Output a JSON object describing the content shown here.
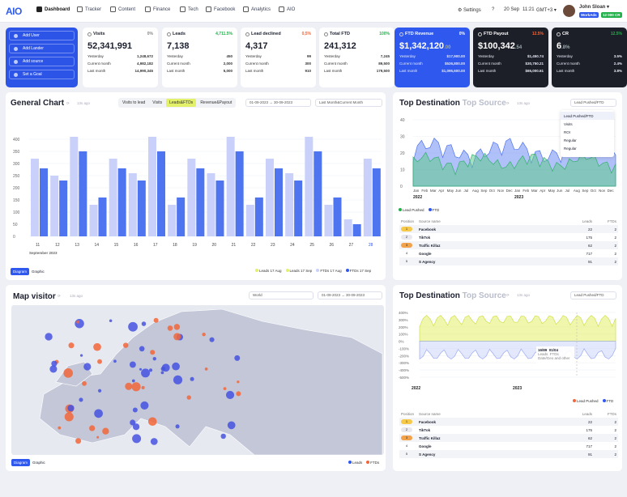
{
  "brand": {
    "logo": "AIO"
  },
  "nav": [
    {
      "label": "Dashboard",
      "active": true
    },
    {
      "label": "Tracker"
    },
    {
      "label": "Content"
    },
    {
      "label": "Finance"
    },
    {
      "label": "Tech"
    },
    {
      "label": "Facebook"
    },
    {
      "label": "Analytics"
    },
    {
      "label": "AIO"
    }
  ],
  "topright": {
    "settings": "Settings",
    "help": "?",
    "date": "20 Sep",
    "time": "11:21",
    "tz": "GMT+3",
    "user": "John Sloan",
    "badge1": "WorkAds",
    "badge2": "12 000 CR"
  },
  "quick": [
    "Add User",
    "Add Lander",
    "Add source",
    "Set a Goal"
  ],
  "stats": [
    {
      "title": "Visits",
      "pct": "0%",
      "big": "52,341,991",
      "small": "",
      "rows": [
        [
          "Yesterday",
          "1,248,672"
        ],
        [
          "Current month",
          "4,982,182"
        ],
        [
          "Last month",
          "14,990,345"
        ]
      ]
    },
    {
      "title": "Leads",
      "pct": "4,711.5%",
      "big": "7,138",
      "small": "",
      "rows": [
        [
          "Yesterday",
          "450"
        ],
        [
          "Current month",
          "2,000"
        ],
        [
          "Last month",
          "5,000"
        ]
      ]
    },
    {
      "title": "Lead declined",
      "pct": "0,5%",
      "big": "4,317",
      "small": "",
      "rows": [
        [
          "Yesterday",
          "99"
        ],
        [
          "Current month",
          "300"
        ],
        [
          "Last month",
          "910"
        ]
      ]
    },
    {
      "title": "Total FTD",
      "pct": "100%",
      "big": "241,312",
      "small": "",
      "rows": [
        [
          "Yesterday",
          "7,245"
        ],
        [
          "Current month",
          "89,500"
        ],
        [
          "Last month",
          "179,500"
        ]
      ]
    },
    {
      "title": "FTD Revenue",
      "pct": "0%",
      "big": "$1,342,120",
      "small": ".00",
      "rows": [
        [
          "Yesterday",
          "$17,900.00"
        ],
        [
          "Current month",
          "$526,800.00"
        ],
        [
          "Last month",
          "$1,095,600.00"
        ]
      ]
    },
    {
      "title": "FTD Payout",
      "pct": "12.5%",
      "big": "$100,342",
      "small": ".54",
      "rows": [
        [
          "Yesterday",
          "$1,450.74"
        ],
        [
          "Current month",
          "$30,750.21"
        ],
        [
          "Last month",
          "$65,000.61"
        ]
      ]
    },
    {
      "title": "CR",
      "pct": "12.5%",
      "big": "6",
      "small": ".8%",
      "rows": [
        [
          "Yesterday",
          "3.5%"
        ],
        [
          "Current month",
          "2.4%"
        ],
        [
          "Last month",
          "3.8%"
        ]
      ]
    }
  ],
  "general": {
    "title": "General Chart",
    "ago": "13s ago",
    "tabs": [
      "Visits to lead",
      "Visits",
      "Leads&FTDs",
      "Revenue&Payout"
    ],
    "date": "01-09-2023 → 30-09-2023",
    "range": "Last Month&Current Month",
    "xlabel_month": "September 2023",
    "toggle": [
      "Diagram",
      "Graphic"
    ],
    "legend": [
      "Leads 17 Aug",
      "Leads 17 Sep",
      "FTDs 17 Aug",
      "FTDs 17 Sep"
    ]
  },
  "chart_data": [
    {
      "type": "bar",
      "categories": [
        "11",
        "12",
        "13",
        "14",
        "15",
        "16",
        "17",
        "18",
        "19",
        "20",
        "21",
        "22",
        "23",
        "24",
        "25",
        "26",
        "27",
        "28"
      ],
      "ylim": [
        0,
        450
      ],
      "yticks": [
        0,
        50,
        100,
        150,
        200,
        250,
        300,
        350,
        400
      ],
      "series": [
        {
          "name": "Leads 17 Aug",
          "values": [
            320,
            250,
            410,
            130,
            320,
            260,
            410,
            130,
            320,
            260,
            410,
            130,
            320,
            260,
            410,
            130,
            70,
            320
          ]
        },
        {
          "name": "FTDs 17 Sep",
          "values": [
            280,
            230,
            350,
            160,
            280,
            230,
            350,
            160,
            280,
            230,
            350,
            160,
            280,
            230,
            350,
            160,
            50,
            280
          ]
        }
      ]
    },
    {
      "type": "area",
      "xlabels": [
        "Jan",
        "Feb",
        "Mar",
        "Apr",
        "May",
        "Jun",
        "Jul",
        "Aug",
        "Sep",
        "Oct",
        "Nov",
        "Dec",
        "Jan",
        "Feb",
        "Mar",
        "Apr",
        "May",
        "Jun",
        "Jul",
        "Aug",
        "Sep",
        "Oct",
        "Nov",
        "Dec"
      ],
      "years": [
        "2022",
        "2023"
      ],
      "ylim": [
        0,
        40
      ],
      "yticks": [
        0,
        10,
        20,
        30,
        40
      ],
      "series": [
        {
          "name": "Lead Pushed"
        },
        {
          "name": "FTD"
        }
      ]
    },
    {
      "type": "line",
      "ylim": [
        -500,
        400
      ],
      "yticks": [
        400,
        300,
        200,
        100,
        0,
        -100,
        -200,
        -300,
        -400,
        -500
      ],
      "years": [
        "2022",
        "2023"
      ],
      "series": [
        {
          "name": "Lead Pushed"
        },
        {
          "name": "FTD"
        }
      ]
    }
  ],
  "dest1": {
    "title": "Top Destination",
    "sub": "Top Source",
    "ago": "13s ago",
    "dropdown": "Lead Pushed/FTD",
    "menu": [
      "Lead Pushed/FTD",
      "Visits",
      "ROI",
      "Regular",
      "Regular"
    ],
    "legend": [
      "Lead Pushed",
      "FTD"
    ]
  },
  "dest2": {
    "title": "Top Destination",
    "sub": "Top Source",
    "ago": "13s ago",
    "dropdown": "Lead Pushed/FTD",
    "legend": [
      "Lead Pushed",
      "FTD"
    ],
    "tooltip": {
      "a": "16/89",
      "b": "01/04",
      "la": "Leads",
      "lb": "FTDs",
      "c": "Date/Geo and other"
    }
  },
  "table": {
    "headers": [
      "Position",
      "Source name",
      "Leads",
      "FTDs"
    ],
    "rows": [
      [
        "1",
        "Facebook",
        "22",
        "2"
      ],
      [
        "2",
        "TikTok",
        "175",
        "2"
      ],
      [
        "3",
        "Traffic Killaz",
        "62",
        "2"
      ],
      [
        "4",
        "Google",
        "717",
        "2"
      ],
      [
        "5",
        "S Agency",
        "91",
        "2"
      ]
    ]
  },
  "map": {
    "title": "Map visitor",
    "ago": "13s ago",
    "world": "World",
    "date": "01-09-2023 → 30-09-2023",
    "toggle": [
      "Diagram",
      "Graphic"
    ],
    "legend": [
      "Leads",
      "FTDs"
    ]
  },
  "colors": {
    "accent": "#2f58ef",
    "lightBlue": "#c9d1fa",
    "orange": "#f2663a",
    "lime": "#e3f06a"
  }
}
